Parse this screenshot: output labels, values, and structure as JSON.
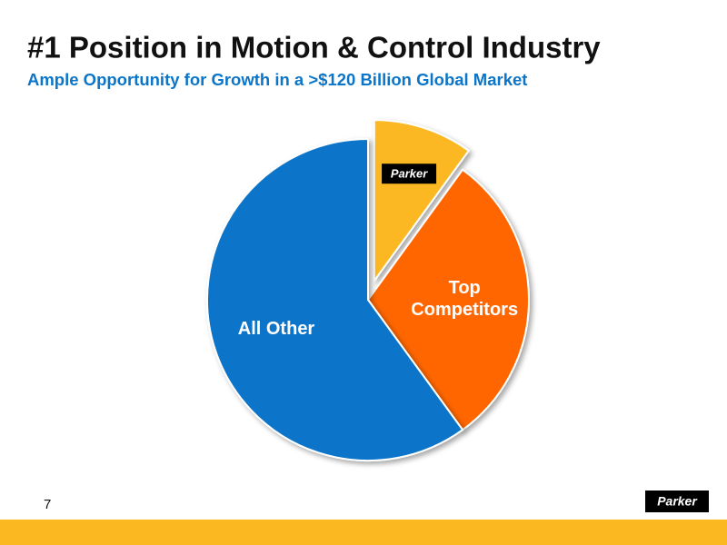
{
  "chart_data": {
    "type": "pie",
    "title": "#1 Position in Motion & Control Industry",
    "subtitle": "Ample Opportunity for Growth in a >$120 Billion Global Market",
    "categories": [
      "Parker",
      "Top Competitors",
      "All Other"
    ],
    "values": [
      10,
      30,
      60
    ],
    "colors": [
      "#fbb820",
      "#ff6600",
      "#0a75c9"
    ],
    "exploded": [
      true,
      false,
      false
    ]
  },
  "footer": {
    "page": "7",
    "logo": "Parker"
  }
}
